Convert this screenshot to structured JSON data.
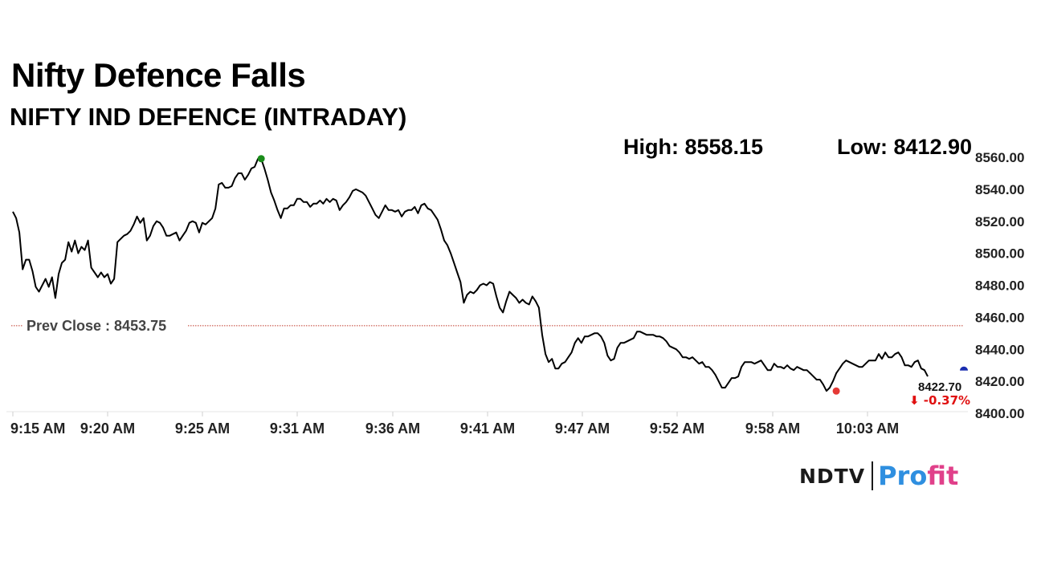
{
  "title": "Nifty Defence Falls",
  "subtitle": "NIFTY IND DEFENCE (INTRADAY)",
  "stats": {
    "high": "High: 8558.15",
    "low": "Low: 8412.90"
  },
  "logo": {
    "ndtv": "NDTV",
    "profit_a": "Pro",
    "profit_b": "fit"
  },
  "chart_data": {
    "type": "line",
    "ylim": [
      8400,
      8560
    ],
    "yticks": [
      "8560.00",
      "8540.00",
      "8520.00",
      "8500.00",
      "8480.00",
      "8460.00",
      "8440.00",
      "8420.00",
      "8400.00"
    ],
    "xticks": [
      "9:15 AM",
      "9:20 AM",
      "9:25 AM",
      "9:31 AM",
      "9:36 AM",
      "9:41 AM",
      "9:47 AM",
      "9:52 AM",
      "9:58 AM",
      "10:03 AM"
    ],
    "prev_close": {
      "label": "Prev Close : 8453.75",
      "value": 8453.75,
      "color": "#c0392b"
    },
    "high": {
      "value": 8558.15,
      "index": 76,
      "color": "#1a8c1a"
    },
    "low": {
      "value": 8412.9,
      "index": 252,
      "color": "#e53935"
    },
    "last": {
      "price": "8422.70",
      "change": "⬇ -0.37%",
      "change_color": "#e01010",
      "marker_color": "#1a2db0"
    },
    "series": [
      {
        "values": [
          8525,
          8521,
          8512,
          8489,
          8495,
          8495,
          8488,
          8478,
          8475,
          8479,
          8483,
          8478,
          8484,
          8471,
          8486,
          8493,
          8495,
          8506,
          8500,
          8507,
          8499,
          8503,
          8501,
          8507,
          8490,
          8487,
          8484,
          8487,
          8484,
          8486,
          8480,
          8483,
          8506,
          8508,
          8510,
          8511,
          8513,
          8517,
          8522,
          8518,
          8521,
          8507,
          8510,
          8516,
          8519,
          8518,
          8515,
          8510,
          8510,
          8511,
          8512,
          8507,
          8510,
          8513,
          8518,
          8519,
          8518,
          8512,
          8518,
          8517,
          8519,
          8521,
          8527,
          8542,
          8543,
          8540,
          8540,
          8541,
          8546,
          8549,
          8549,
          8545,
          8548,
          8552,
          8553,
          8558,
          8558,
          8552,
          8545,
          8537,
          8532,
          8526,
          8521,
          8527,
          8527,
          8529,
          8529,
          8533,
          8533,
          8531,
          8531,
          8528,
          8530,
          8530,
          8532,
          8530,
          8533,
          8531,
          8533,
          8532,
          8526,
          8529,
          8531,
          8534,
          8538,
          8539,
          8538,
          8537,
          8535,
          8531,
          8527,
          8523,
          8521,
          8525,
          8529,
          8526,
          8526,
          8525,
          8526,
          8522,
          8525,
          8526,
          8526,
          8528,
          8524,
          8529,
          8530,
          8527,
          8526,
          8523,
          8520,
          8514,
          8507,
          8504,
          8499,
          8493,
          8487,
          8481,
          8468,
          8473,
          8475,
          8474,
          8476,
          8479,
          8480,
          8479,
          8481,
          8480,
          8472,
          8465,
          8462,
          8469,
          8475,
          8473,
          8471,
          8468,
          8470,
          8468,
          8467,
          8472,
          8469,
          8465,
          8448,
          8436,
          8431,
          8433,
          8427,
          8427,
          8430,
          8431,
          8434,
          8437,
          8443,
          8446,
          8443,
          8447,
          8447,
          8448,
          8449,
          8449,
          8447,
          8443,
          8435,
          8432,
          8433,
          8440,
          8443,
          8443,
          8444,
          8445,
          8446,
          8450,
          8450,
          8449,
          8448,
          8448,
          8448,
          8447,
          8447,
          8446,
          8444,
          8441,
          8440,
          8439,
          8437,
          8434,
          8434,
          8433,
          8434,
          8432,
          8430,
          8431,
          8428,
          8428,
          8426,
          8423,
          8419,
          8415,
          8415,
          8418,
          8421,
          8421,
          8422,
          8428,
          8431,
          8431,
          8431,
          8430,
          8431,
          8432,
          8429,
          8426,
          8426,
          8430,
          8428,
          8428,
          8427,
          8429,
          8427,
          8426,
          8428,
          8427,
          8426,
          8426,
          8424,
          8422,
          8420,
          8420,
          8417,
          8413,
          8415,
          8419,
          8424,
          8427,
          8430,
          8432,
          8431,
          8430,
          8429,
          8428,
          8428,
          8430,
          8432,
          8432,
          8432,
          8436,
          8433,
          8437,
          8434,
          8434,
          8436,
          8437,
          8434,
          8429,
          8429,
          8428,
          8431,
          8432,
          8427,
          8426,
          8422
        ]
      }
    ]
  }
}
